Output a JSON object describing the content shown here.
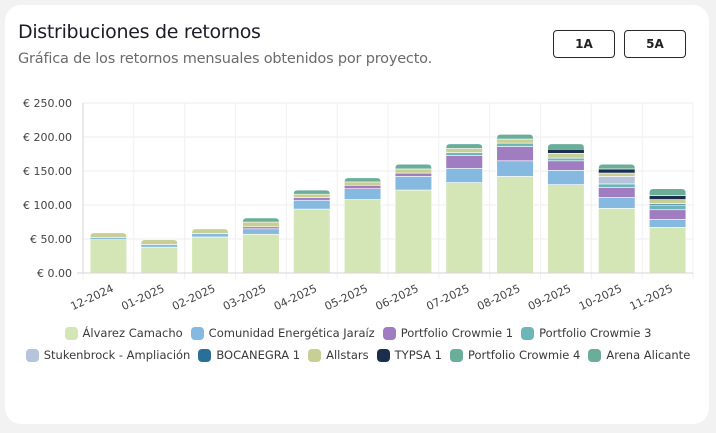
{
  "header": {
    "title": "Distribuciones de retornos",
    "subtitle": "Gráfica de los retornos mensuales obtenidos por proyecto."
  },
  "range_buttons": [
    {
      "label": "1A"
    },
    {
      "label": "5A"
    }
  ],
  "chart_data": {
    "type": "bar",
    "stacked": true,
    "title": "",
    "xlabel": "",
    "ylabel": "",
    "ylim": [
      0,
      250
    ],
    "yticks": [
      0,
      50,
      100,
      150,
      200,
      250
    ],
    "ytick_labels": [
      "€ 0.00",
      "€ 50.00",
      "€ 100.00",
      "€ 150.00",
      "€ 200.00",
      "€ 250.00"
    ],
    "grid": true,
    "legend_position": "bottom",
    "categories": [
      "12-2024",
      "01-2025",
      "02-2025",
      "03-2025",
      "04-2025",
      "05-2025",
      "06-2025",
      "07-2025",
      "08-2025",
      "09-2025",
      "10-2025",
      "11-2025"
    ],
    "series": [
      {
        "name": "Álvarez Camacho",
        "color": "#d4e6b5",
        "values": [
          49,
          38,
          53,
          57,
          94,
          108,
          122,
          133,
          142,
          130,
          95,
          67
        ]
      },
      {
        "name": "Comunidad Energética Jaraíz",
        "color": "#85b9e0",
        "values": [
          3,
          4,
          5,
          8,
          13,
          16,
          20,
          21,
          23,
          21,
          16,
          12
        ]
      },
      {
        "name": "Portfolio Crowmie 1",
        "color": "#a07cc0",
        "values": [
          0,
          0,
          0,
          3,
          4,
          5,
          5,
          19,
          21,
          14,
          15,
          14
        ]
      },
      {
        "name": "Portfolio Crowmie 3",
        "color": "#6db6b8",
        "values": [
          0,
          0,
          0,
          0,
          0,
          0,
          0,
          4,
          5,
          4,
          5,
          7
        ]
      },
      {
        "name": "Stukenbrock - Ampliación",
        "color": "#b5c4da",
        "values": [
          0,
          0,
          0,
          0,
          0,
          0,
          0,
          0,
          0,
          0,
          11,
          0
        ]
      },
      {
        "name": "BOCANEGRA 1",
        "color": "#2a6f97",
        "values": [
          0,
          0,
          0,
          0,
          0,
          0,
          0,
          0,
          0,
          0,
          0,
          2
        ]
      },
      {
        "name": "Allstars",
        "color": "#c8cf95",
        "values": [
          7,
          7,
          7,
          7,
          5,
          5,
          6,
          6,
          6,
          7,
          5,
          6
        ]
      },
      {
        "name": "TYPSA 1",
        "color": "#1c2e4e",
        "values": [
          0,
          0,
          0,
          0,
          0,
          0,
          0,
          0,
          0,
          6,
          6,
          6
        ]
      },
      {
        "name": "Portfolio Crowmie 4",
        "color": "#6aae9a",
        "values": [
          0,
          0,
          0,
          6,
          0,
          0,
          0,
          0,
          0,
          0,
          0,
          0
        ]
      },
      {
        "name": "Arena Alicante",
        "color": "#6aae9a",
        "values": [
          0,
          0,
          0,
          0,
          6,
          6,
          7,
          7,
          7,
          8,
          7,
          10
        ]
      }
    ]
  }
}
